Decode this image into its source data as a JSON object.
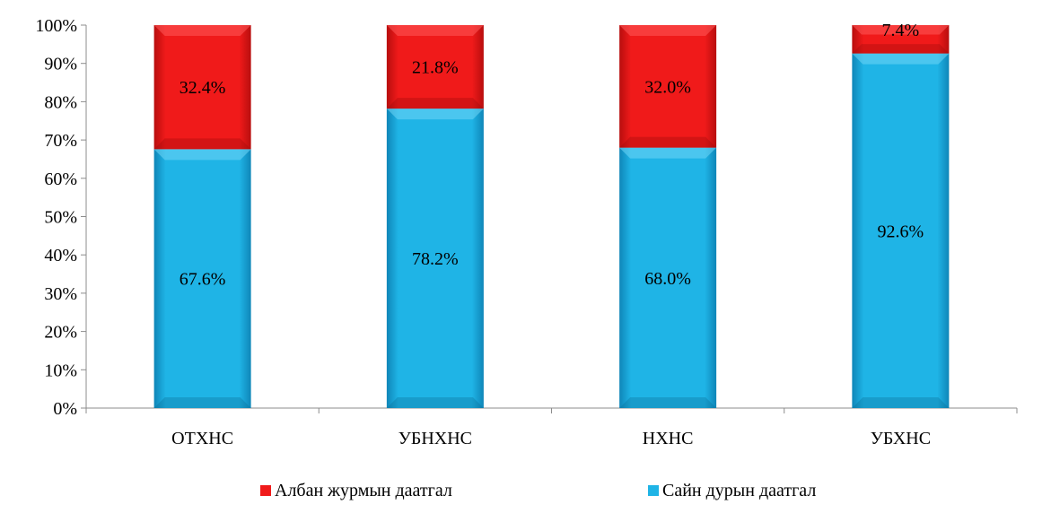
{
  "chart_data": {
    "type": "bar",
    "stacked": true,
    "percent": true,
    "categories": [
      "ОТХНС",
      "УБНХНС",
      "НХНС",
      "УБХНС"
    ],
    "series": [
      {
        "name": "Сайн дурын даатгал",
        "values": [
          67.6,
          78.2,
          68.0,
          92.6
        ],
        "labels": [
          "67.6%",
          "78.2%",
          "68.0%",
          "92.6%"
        ],
        "color": "#1fb4e6"
      },
      {
        "name": "Албан журмын даатгал",
        "values": [
          32.4,
          21.8,
          32.0,
          7.4
        ],
        "labels": [
          "32.4%",
          "21.8%",
          "32.0%",
          "7.4%"
        ],
        "color": "#f01a1a"
      }
    ],
    "ylim": [
      0,
      100
    ],
    "yticks": [
      0,
      10,
      20,
      30,
      40,
      50,
      60,
      70,
      80,
      90,
      100
    ],
    "ytick_labels": [
      "0%",
      "10%",
      "20%",
      "30%",
      "40%",
      "50%",
      "60%",
      "70%",
      "80%",
      "90%",
      "100%"
    ],
    "grid": false,
    "legend": {
      "position": "bottom",
      "entries": [
        "Албан журмын даатгал",
        "Сайн дурын даатгал"
      ]
    },
    "title": "",
    "xlabel": "",
    "ylabel": ""
  }
}
